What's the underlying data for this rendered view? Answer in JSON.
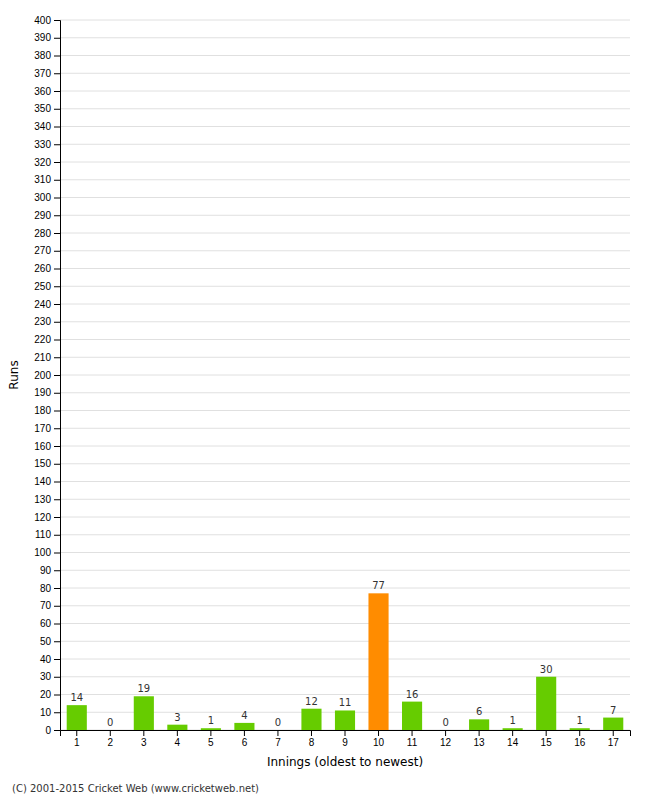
{
  "chart_data": {
    "type": "bar",
    "categories": [
      "1",
      "2",
      "3",
      "4",
      "5",
      "6",
      "7",
      "8",
      "9",
      "10",
      "11",
      "12",
      "13",
      "14",
      "15",
      "16",
      "17"
    ],
    "values": [
      14,
      0,
      19,
      3,
      1,
      4,
      0,
      12,
      11,
      77,
      16,
      0,
      6,
      1,
      30,
      1,
      7
    ],
    "colors": [
      "#66cc00",
      "#66cc00",
      "#66cc00",
      "#66cc00",
      "#66cc00",
      "#66cc00",
      "#66cc00",
      "#66cc00",
      "#66cc00",
      "#ff8c00",
      "#66cc00",
      "#66cc00",
      "#66cc00",
      "#66cc00",
      "#66cc00",
      "#66cc00",
      "#66cc00"
    ],
    "x_label": "Innings (oldest to newest)",
    "y_label": "Runs",
    "ylim": [
      0,
      400
    ],
    "yticks": [
      0,
      10,
      20,
      30,
      40,
      50,
      60,
      70,
      80,
      90,
      100,
      110,
      120,
      130,
      140,
      150,
      160,
      170,
      180,
      190,
      200,
      210,
      220,
      230,
      240,
      250,
      260,
      270,
      280,
      290,
      300,
      310,
      320,
      330,
      340,
      350,
      360,
      370,
      380,
      390,
      400
    ],
    "grid": true,
    "data_labels": true,
    "annotations": [
      "(C) 2001-2015 Cricket Web (www.cricketweb.net)"
    ]
  }
}
